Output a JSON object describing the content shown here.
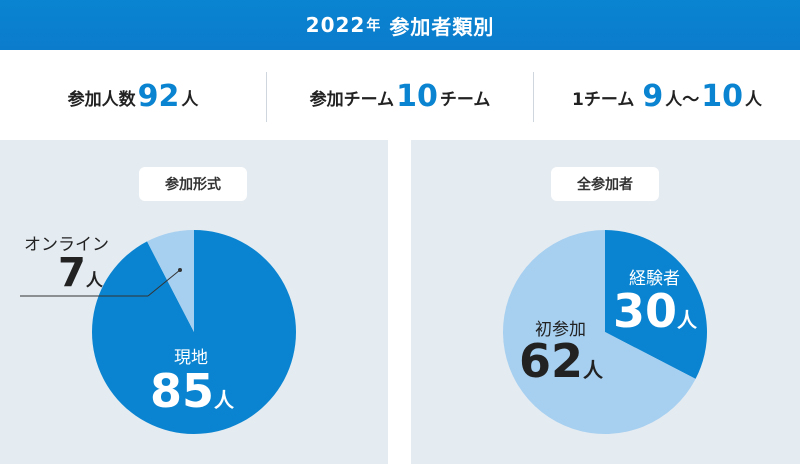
{
  "header": {
    "year": "2022",
    "year_suffix": "年",
    "title": "参加者類別"
  },
  "stats": [
    {
      "prefix": "参加人数",
      "value": "92",
      "suffix": "人"
    },
    {
      "prefix": "参加チーム",
      "value": "10",
      "suffix": "チーム"
    },
    {
      "prefix": "1チーム",
      "value": "9",
      "mid": "人〜",
      "value2": "10",
      "suffix": "人"
    }
  ],
  "colors": {
    "primary": "#0a84d0",
    "light": "#a6cff0",
    "panel": "#e4ebf1"
  },
  "chart_data": [
    {
      "type": "pie",
      "title": "参加形式",
      "slices": [
        {
          "label": "現地",
          "value": 85,
          "unit": "人",
          "color": "#0a84d0"
        },
        {
          "label": "オンライン",
          "value": 7,
          "unit": "人",
          "color": "#a6cff0"
        }
      ]
    },
    {
      "type": "pie",
      "title": "全参加者",
      "slices": [
        {
          "label": "経験者",
          "value": 30,
          "unit": "人",
          "color": "#0a84d0"
        },
        {
          "label": "初参加",
          "value": 62,
          "unit": "人",
          "color": "#a6cff0"
        }
      ]
    }
  ]
}
